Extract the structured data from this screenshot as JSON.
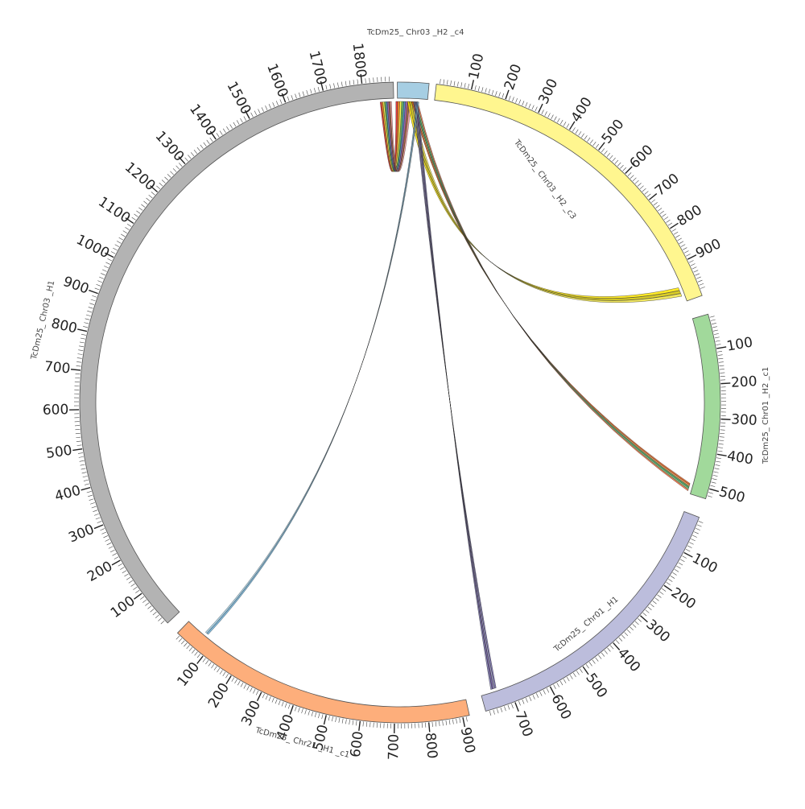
{
  "diagram": {
    "type": "circos",
    "chromosomes": [
      {
        "id": "c4",
        "label": "TcDm25_ Chr03 _H2 _c4",
        "length": 60,
        "color": "#a6cee3",
        "ticks": []
      },
      {
        "id": "c3",
        "label": "TcDm25_ Chr03 _H2 _c3",
        "length": 1010,
        "color": "#fff68f",
        "ticks": [
          "100",
          "200",
          "300",
          "400",
          "500",
          "600",
          "700",
          "800",
          "900"
        ]
      },
      {
        "id": "c1h2",
        "label": "TcDm25_ Chr01 _H2 _c1",
        "length": 530,
        "color": "#a1d99b",
        "ticks": [
          "100",
          "200",
          "300",
          "400",
          "500"
        ]
      },
      {
        "id": "chr01h1",
        "label": "TcDm25_ Chr01 _H1",
        "length": 780,
        "color": "#bcbddc",
        "ticks": [
          "100",
          "200",
          "300",
          "400",
          "500",
          "600",
          "700"
        ]
      },
      {
        "id": "chr21",
        "label": "TcDm25_ Chr21 _H1 _c1",
        "length": 920,
        "color": "#fdae7b",
        "ticks": [
          "100",
          "200",
          "300",
          "400",
          "500",
          "600",
          "700",
          "800",
          "900"
        ],
        "reversed": true
      },
      {
        "id": "chr03h1",
        "label": "TcDm25_ Chr03 _H1",
        "length": 1880,
        "color": "#b3b3b3",
        "ticks": [
          "100",
          "200",
          "300",
          "400",
          "500",
          "600",
          "700",
          "800",
          "900",
          "1000",
          "1100",
          "1200",
          "1300",
          "1400",
          "1500",
          "1600",
          "1700",
          "1800"
        ]
      }
    ],
    "link_groups": [
      {
        "from": "c4",
        "to": "chr03h1",
        "colors": [
          "#e41a1c",
          "#ff7f00",
          "#ffff33",
          "#4daf4a",
          "#377eb8",
          "#984ea3",
          "#a65628",
          "#fb9a99"
        ]
      },
      {
        "from": "c4",
        "to": "c3",
        "colors": [
          "#ffe600",
          "#d4c400",
          "#f0e442"
        ]
      },
      {
        "from": "c4",
        "to": "c1h2",
        "colors": [
          "#e6550d",
          "#fd8d3c",
          "#31a354",
          "#74c476",
          "#ff6f3c"
        ]
      },
      {
        "from": "c4",
        "to": "chr01h1",
        "colors": [
          "#756bb1",
          "#9e9ac8",
          "#6a51a3",
          "#807dba"
        ]
      },
      {
        "from": "c4",
        "to": "chr21",
        "colors": [
          "#6baed6",
          "#9ecae1"
        ]
      }
    ]
  }
}
